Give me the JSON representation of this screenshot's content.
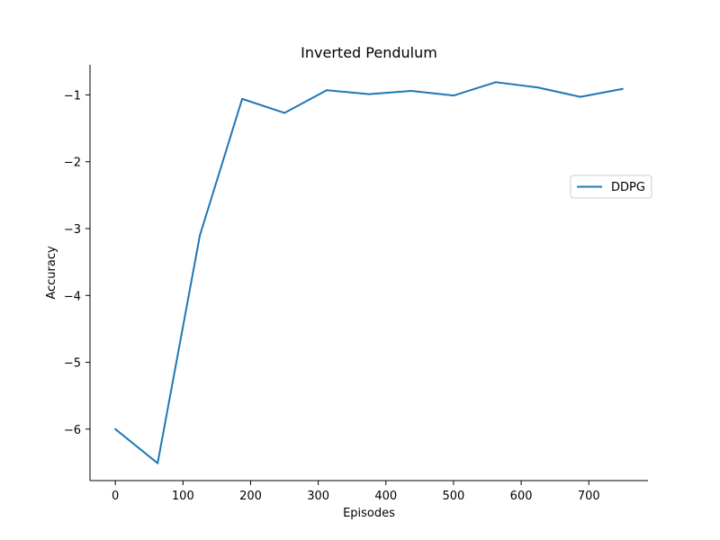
{
  "chart_data": {
    "type": "line",
    "title": "Inverted Pendulum",
    "xlabel": "Episodes",
    "ylabel": "Accuracy",
    "xlim": [
      -37.5,
      787.5
    ],
    "ylim": [
      -6.77,
      -0.55
    ],
    "x_ticks": [
      0,
      100,
      200,
      300,
      400,
      500,
      600,
      700
    ],
    "y_ticks": [
      -6,
      -5,
      -4,
      -3,
      -2,
      -1
    ],
    "y_tick_labels": [
      "−6",
      "−5",
      "−4",
      "−3",
      "−2",
      "−1"
    ],
    "x_tick_labels": [
      "0",
      "100",
      "200",
      "300",
      "400",
      "500",
      "600",
      "700"
    ],
    "grid": false,
    "legend_position": "center-right",
    "series": [
      {
        "name": "DDPG",
        "color": "#1f77b4",
        "x": [
          0,
          62.5,
          125,
          187.5,
          250,
          312.5,
          375,
          437.5,
          500,
          562.5,
          625,
          687.5,
          750
        ],
        "y": [
          -6.0,
          -6.51,
          -3.1,
          -1.06,
          -1.27,
          -0.93,
          -0.99,
          -0.94,
          -1.01,
          -0.81,
          -0.89,
          -1.03,
          -0.91
        ]
      }
    ]
  }
}
